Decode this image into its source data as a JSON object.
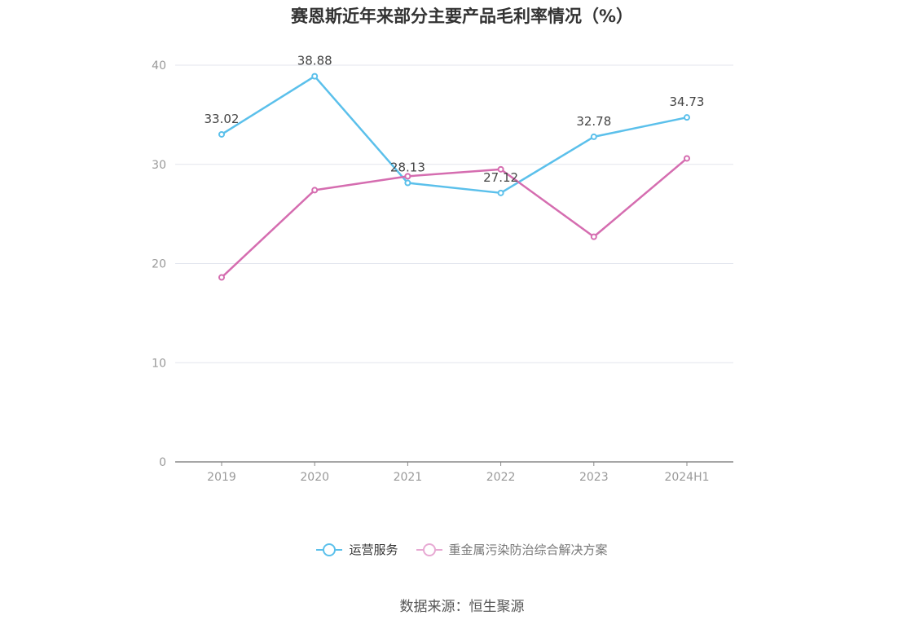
{
  "chart_data": {
    "type": "line",
    "title": "赛恩斯近年来部分主要产品毛利率情况（%）",
    "categories": [
      "2019",
      "2020",
      "2021",
      "2022",
      "2023",
      "2024H1"
    ],
    "ylim": [
      0,
      40
    ],
    "yticks": [
      0,
      10,
      20,
      30,
      40
    ],
    "grid": true,
    "legend_position": "bottom",
    "series": [
      {
        "name": "运营服务",
        "color": "#5bc0eb",
        "values": [
          33.02,
          38.88,
          28.13,
          27.12,
          32.78,
          34.73
        ],
        "labels": [
          "33.02",
          "38.88",
          "28.13",
          "27.12",
          "32.78",
          "34.73"
        ]
      },
      {
        "name": "重金属污染防治综合解决方案",
        "color": "#d56db0",
        "legend_color": "#e7a9d3",
        "values": [
          18.6,
          27.4,
          28.8,
          29.5,
          22.7,
          30.6
        ]
      }
    ]
  },
  "source": "数据来源：恒生聚源"
}
